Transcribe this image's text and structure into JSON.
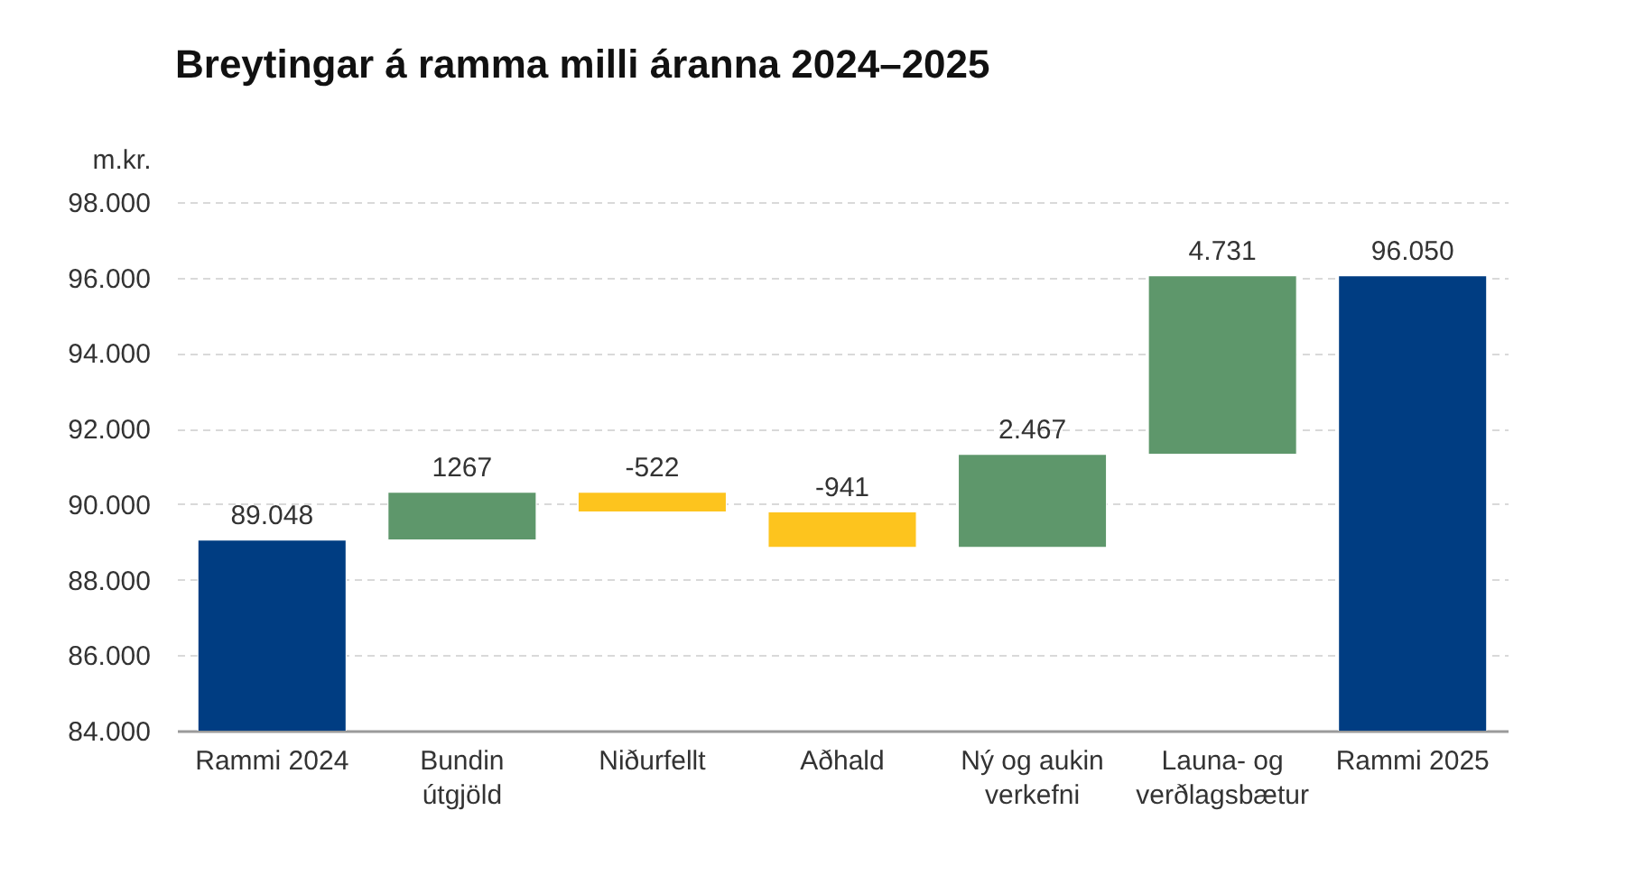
{
  "chart_data": {
    "type": "bar",
    "title": "Breytingar á ramma milli áranna 2024–2025",
    "ylabel": "m.kr.",
    "categories": [
      "Rammi 2024",
      "Bundin útgjöld",
      "Niðurfellt",
      "Aðhald",
      "Ný og aukin verkefni",
      "Launa- og verðlagsbætur",
      "Rammi 2025"
    ],
    "values": [
      89048,
      1267,
      -522,
      -941,
      2467,
      4731,
      96050
    ],
    "base": [
      null,
      89048,
      90315,
      89793,
      88852,
      91319,
      null
    ],
    "colors": [
      "#003d82",
      "#5e976b",
      "#fdc41e",
      "#fdc41e",
      "#5e976b",
      "#5e976b",
      "#003d82"
    ],
    "value_labels": [
      "89.048",
      "1267",
      "-522",
      "-941",
      "2.467",
      "4.731",
      "96.050"
    ],
    "ylim": [
      84000,
      98000
    ],
    "yticks": [
      {
        "value": 84000,
        "label": "84.000"
      },
      {
        "value": 86000,
        "label": "86.000"
      },
      {
        "value": 88000,
        "label": "88.000"
      },
      {
        "value": 90000,
        "label": "90.000"
      },
      {
        "value": 92000,
        "label": "92.000"
      },
      {
        "value": 94000,
        "label": "94.000"
      },
      {
        "value": 96000,
        "label": "96.000"
      },
      {
        "value": 98000,
        "label": "98.000"
      }
    ],
    "grid": "y"
  }
}
